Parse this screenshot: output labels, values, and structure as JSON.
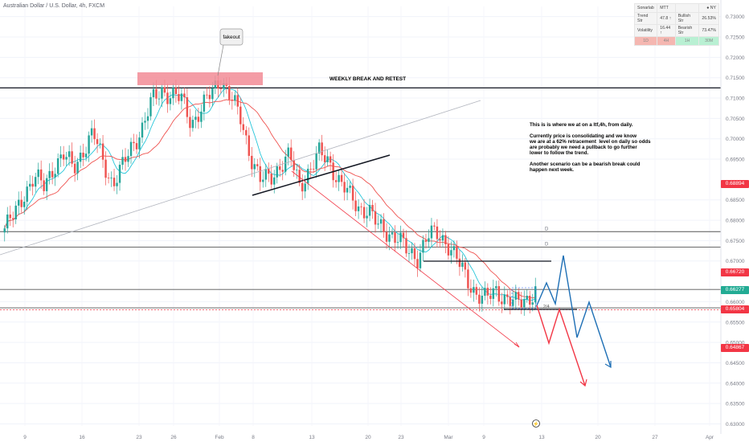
{
  "header": {
    "symbol_title": "Australian Dollar / U.S. Dollar, 4h, FXCM"
  },
  "info_table": {
    "rows": [
      [
        "Sonarlab",
        "MTT",
        "",
        "NY"
      ],
      [
        "Trend Str",
        "47.8 ↑",
        "Bullish Str",
        "26.53%"
      ],
      [
        "Volatility",
        "16.44 ↑",
        "Bearish Str",
        "73.47%"
      ],
      [
        "1D",
        "4H",
        "1H",
        "30M"
      ]
    ],
    "colors": [
      "#f5b7b1",
      "#f5b7b1",
      "#b9f0d3",
      "#b9f0d3"
    ]
  },
  "annotations": {
    "callout": "fakeout",
    "weekly": "WEEKLY BREAK AND RETEST",
    "level_label": "D",
    "note": "This is is where we at on a ltf,4h, from daily.\n\nCurrently price is consolidating and we know\nwe are at a 62% retracement  level on daily so odds\nare probably we need a pullback to go further\nlower to follow the trend.\n\nAnother scenario can be a bearish break could\nhappen next week.",
    "fib_label": "2/4"
  },
  "price_markers": [
    {
      "value": "0.68894",
      "price": 0.68894,
      "color": "#f23645"
    },
    {
      "value": "0.66720",
      "price": 0.6672,
      "color": "#f23645"
    },
    {
      "value": "0.66277",
      "price": 0.66277,
      "color": "#22ab94"
    },
    {
      "value": "0.65804",
      "price": 0.65804,
      "color": "#f23645"
    },
    {
      "value": "0.64867",
      "price": 0.64867,
      "color": "#f23645"
    }
  ],
  "chart_data": {
    "type": "candlestick",
    "y_ticks": [
      "0.73000",
      "0.72500",
      "0.72000",
      "0.71500",
      "0.71000",
      "0.70500",
      "0.70000",
      "0.69500",
      "0.68500",
      "0.68000",
      "0.67500",
      "0.67000",
      "0.66000",
      "0.65500",
      "0.65000",
      "0.64500",
      "0.64000",
      "0.63500",
      "0.63000"
    ],
    "x_ticks": [
      "9",
      "16",
      "23",
      "26",
      "Feb",
      "8",
      "13",
      "20",
      "23",
      "Mar",
      "9",
      "13",
      "20",
      "27",
      "Apr"
    ],
    "ylim": [
      0.6295,
      0.7325
    ],
    "levels": [
      0.7125,
      0.6772,
      0.6734,
      0.663,
      0.6585
    ],
    "close_path": [
      0.678,
      0.6812,
      0.6868,
      0.6905,
      0.6882,
      0.6935,
      0.6958,
      0.6927,
      0.6974,
      0.7012,
      0.6946,
      0.689,
      0.693,
      0.6985,
      0.7028,
      0.7092,
      0.712,
      0.7108,
      0.7095,
      0.7041,
      0.7072,
      0.711,
      0.715,
      0.7102,
      0.7048,
      0.6962,
      0.6898,
      0.6902,
      0.6936,
      0.6957,
      0.6884,
      0.6925,
      0.6962,
      0.6945,
      0.6899,
      0.6861,
      0.6833,
      0.6825,
      0.6783,
      0.6772,
      0.6756,
      0.672,
      0.6712,
      0.676,
      0.6765,
      0.6748,
      0.6703,
      0.6655,
      0.6622,
      0.6604,
      0.6627,
      0.661,
      0.6594,
      0.6605,
      0.6628
    ]
  }
}
